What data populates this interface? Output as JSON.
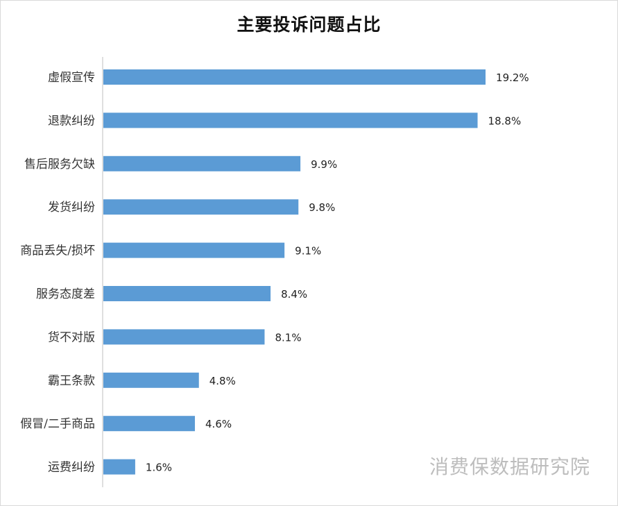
{
  "chart_data": {
    "type": "bar",
    "orientation": "horizontal",
    "title": "主要投诉问题占比",
    "categories": [
      "虚假宣传",
      "退款纠纷",
      "售后服务欠缺",
      "发货纠纷",
      "商品丢失/损坏",
      "服务态度差",
      "货不对版",
      "霸王条款",
      "假冒/二手商品",
      "运费纠纷"
    ],
    "values": [
      19.2,
      18.8,
      9.9,
      9.8,
      9.1,
      8.4,
      8.1,
      4.8,
      4.6,
      1.6
    ],
    "value_labels": [
      "19.2%",
      "18.8%",
      "9.9%",
      "9.8%",
      "9.1%",
      "8.4%",
      "8.1%",
      "4.8%",
      "4.6%",
      "1.6%"
    ],
    "unit": "%",
    "xlim": [
      0,
      20
    ],
    "grid": false,
    "legend": "none",
    "bar_color": "#5b9bd5"
  },
  "watermark": "消费保数据研究院"
}
